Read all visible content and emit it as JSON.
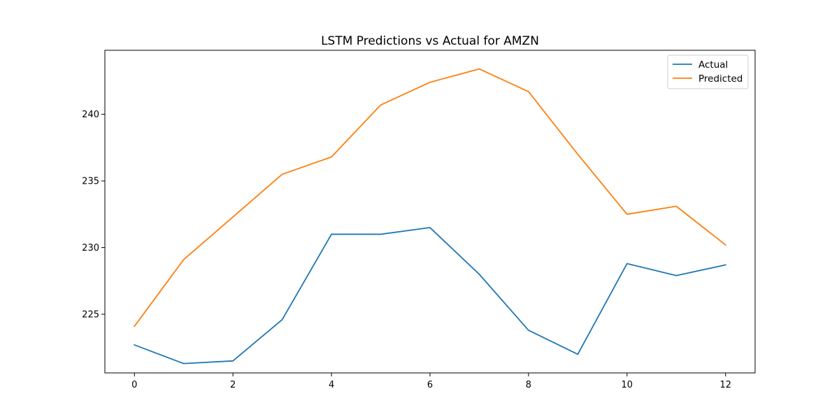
{
  "chart_data": {
    "type": "line",
    "title": "LSTM Predictions vs Actual for AMZN",
    "xlabel": "",
    "ylabel": "",
    "x": [
      0,
      1,
      2,
      3,
      4,
      5,
      6,
      7,
      8,
      9,
      10,
      11,
      12
    ],
    "xlim": [
      -0.6,
      12.6
    ],
    "ylim": [
      220.6,
      244.8
    ],
    "xticks": [
      0,
      2,
      4,
      6,
      8,
      10,
      12
    ],
    "yticks": [
      225,
      230,
      235,
      240
    ],
    "grid": false,
    "legend_position": "top-right",
    "series": [
      {
        "name": "Actual",
        "color": "#1f77b4",
        "values": [
          222.7,
          221.3,
          221.5,
          224.6,
          231.0,
          231.0,
          231.5,
          228.0,
          223.8,
          222.0,
          228.8,
          227.9,
          228.7
        ]
      },
      {
        "name": "Predicted",
        "color": "#ff7f0e",
        "values": [
          224.1,
          229.1,
          232.3,
          235.5,
          236.8,
          240.7,
          242.4,
          243.4,
          241.7,
          237.0,
          232.5,
          233.1,
          230.2
        ]
      }
    ]
  }
}
